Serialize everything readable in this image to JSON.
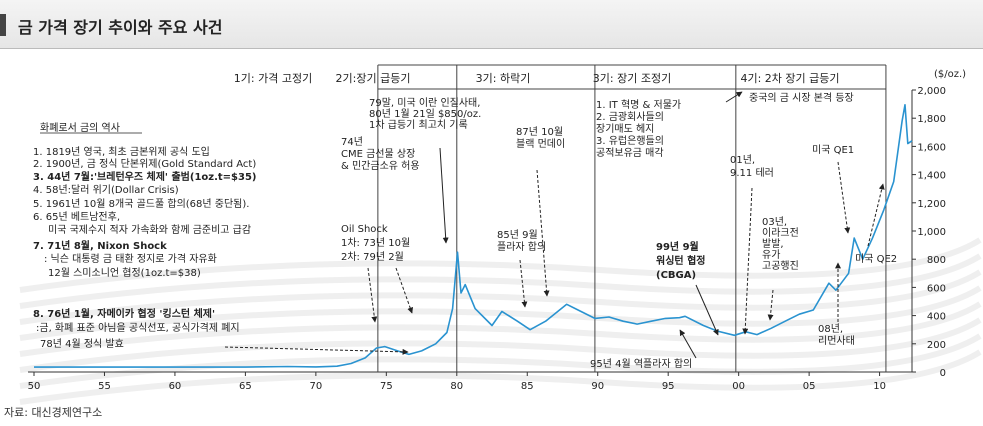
{
  "title": "금 가격 장기 추이와 주요 사건",
  "source": "자료: 대신경제연구소",
  "colors": {
    "line": "#2a93d0",
    "frame": "#555555",
    "title_bg": "#eeeeee"
  },
  "chart_data": {
    "type": "line",
    "y_unit": "($/oz.)",
    "ylim": [
      0,
      2000
    ],
    "y_ticks": [
      "0",
      "200",
      "400",
      "600",
      "800",
      "1,000",
      "1,200",
      "1,400",
      "1,600",
      "1,800",
      "2,000"
    ],
    "x_ticks": [
      "50",
      "55",
      "60",
      "65",
      "70",
      "75",
      "80",
      "85",
      "90",
      "95",
      "00",
      "05",
      "10"
    ],
    "xlim": [
      1950,
      2012.3
    ],
    "series": [
      {
        "x": [
          1950,
          1955,
          1960,
          1965,
          1968,
          1970,
          1971.5,
          1972.5,
          1973.5,
          1974.3,
          1974.9,
          1975.8,
          1976.6,
          1977.5,
          1978.5,
          1979.3,
          1979.7,
          1980.05,
          1980.3,
          1980.6,
          1981.3,
          1982.5,
          1983.2,
          1984.3,
          1985.2,
          1986.3,
          1987.8,
          1988.8,
          1989.8,
          1990.8,
          1991.8,
          1992.8,
          1993.8,
          1994.8,
          1995.8,
          1996.2,
          1997.5,
          1998.5,
          1999.7,
          2000.5,
          2001.3,
          2002.3,
          2003.3,
          2004.3,
          2005.3,
          2006.4,
          2006.9,
          2007.8,
          2008.2,
          2008.8,
          2009.5,
          2010.3,
          2011.0,
          2011.6,
          2011.8,
          2012.0,
          2012.3
        ],
        "y": [
          35,
          35,
          35,
          35,
          39,
          36,
          41,
          60,
          100,
          170,
          180,
          150,
          125,
          150,
          200,
          280,
          450,
          850,
          560,
          620,
          450,
          330,
          430,
          360,
          300,
          360,
          480,
          430,
          380,
          390,
          360,
          340,
          360,
          380,
          385,
          395,
          330,
          290,
          260,
          285,
          265,
          310,
          360,
          410,
          440,
          630,
          580,
          700,
          950,
          800,
          950,
          1150,
          1350,
          1780,
          1895,
          1620,
          1640
        ],
        "name": ""
      }
    ]
  },
  "phases": [
    {
      "label": "1기: 가격 고정기"
    },
    {
      "label": "2기:장기 급등기"
    },
    {
      "label": "3기: 하락기"
    },
    {
      "label": "3기: 장기 조정기"
    },
    {
      "label": "4기: 2차 장기 급등기"
    }
  ],
  "history": {
    "heading": "화폐로서 금의 역사",
    "items": [
      "1. 1819년 영국, 최초 금본위제 공식 도입",
      "2. 1900년, 금 정식 단본위제(Gold Standard Act)",
      "3. 44년 7월:'브레턴우즈 체제' 출범(1oz.t=$35)",
      "4. 58년:달러 위기(Dollar Crisis)",
      "5. 1961년 10월 8개국 골드풀 합의(68년 중단됨).",
      "6. 65년 베트남전후,",
      "미국 국제수지 적자 가속화와 함께 금준비고 급감",
      "7. 71년 8월, Nixon Shock",
      ": 닉슨 대통령 금 태환 정지로 가격 자유화",
      "12월 스미소니언 협정(1oz.t=$38)",
      "8. 76년 1월, 자메이카 협정 '킹스턴 체제'",
      ":금, 화폐 표준 아님을 공식선포, 공식가격제 폐지",
      "78년 4월 정식 발효"
    ]
  },
  "annotations": {
    "cme": [
      "74년",
      "CME 금선물 상장",
      "& 민간금소유 허용"
    ],
    "oil": [
      "Oil Shock",
      "1차: 73년 10월",
      "2차: 79년 2월"
    ],
    "iran": [
      "79말, 미국 이란 인질사태,",
      "80년 1월 21일 $850/oz.",
      "1차 급등기 최고치 기록"
    ],
    "monday": [
      "87년 10월",
      "블랙 먼데이"
    ],
    "plaza": [
      "85년 9월",
      "플라자 합의"
    ],
    "reverse_plaza": "95년 4월 역플라자 합의",
    "cbga": [
      "99년 9월",
      "워싱턴 협정",
      "(CBGA)"
    ],
    "it": [
      "1. IT 혁명 & 저물가",
      "2. 금광회사들의",
      "장기매도 헤지",
      "3. 유럽은행들의",
      "공적보유금 매각"
    ],
    "china": "중국의 금 시장 본격 등장",
    "sept11": [
      "01년,",
      "9.11 테러"
    ],
    "iraq": [
      "03년,",
      "이라크전",
      "발발,",
      "유가",
      "고공행진"
    ],
    "lehman": [
      "08년,",
      "리먼사태"
    ],
    "qe1": "미국 QE1",
    "qe2": "미국 QE2"
  }
}
